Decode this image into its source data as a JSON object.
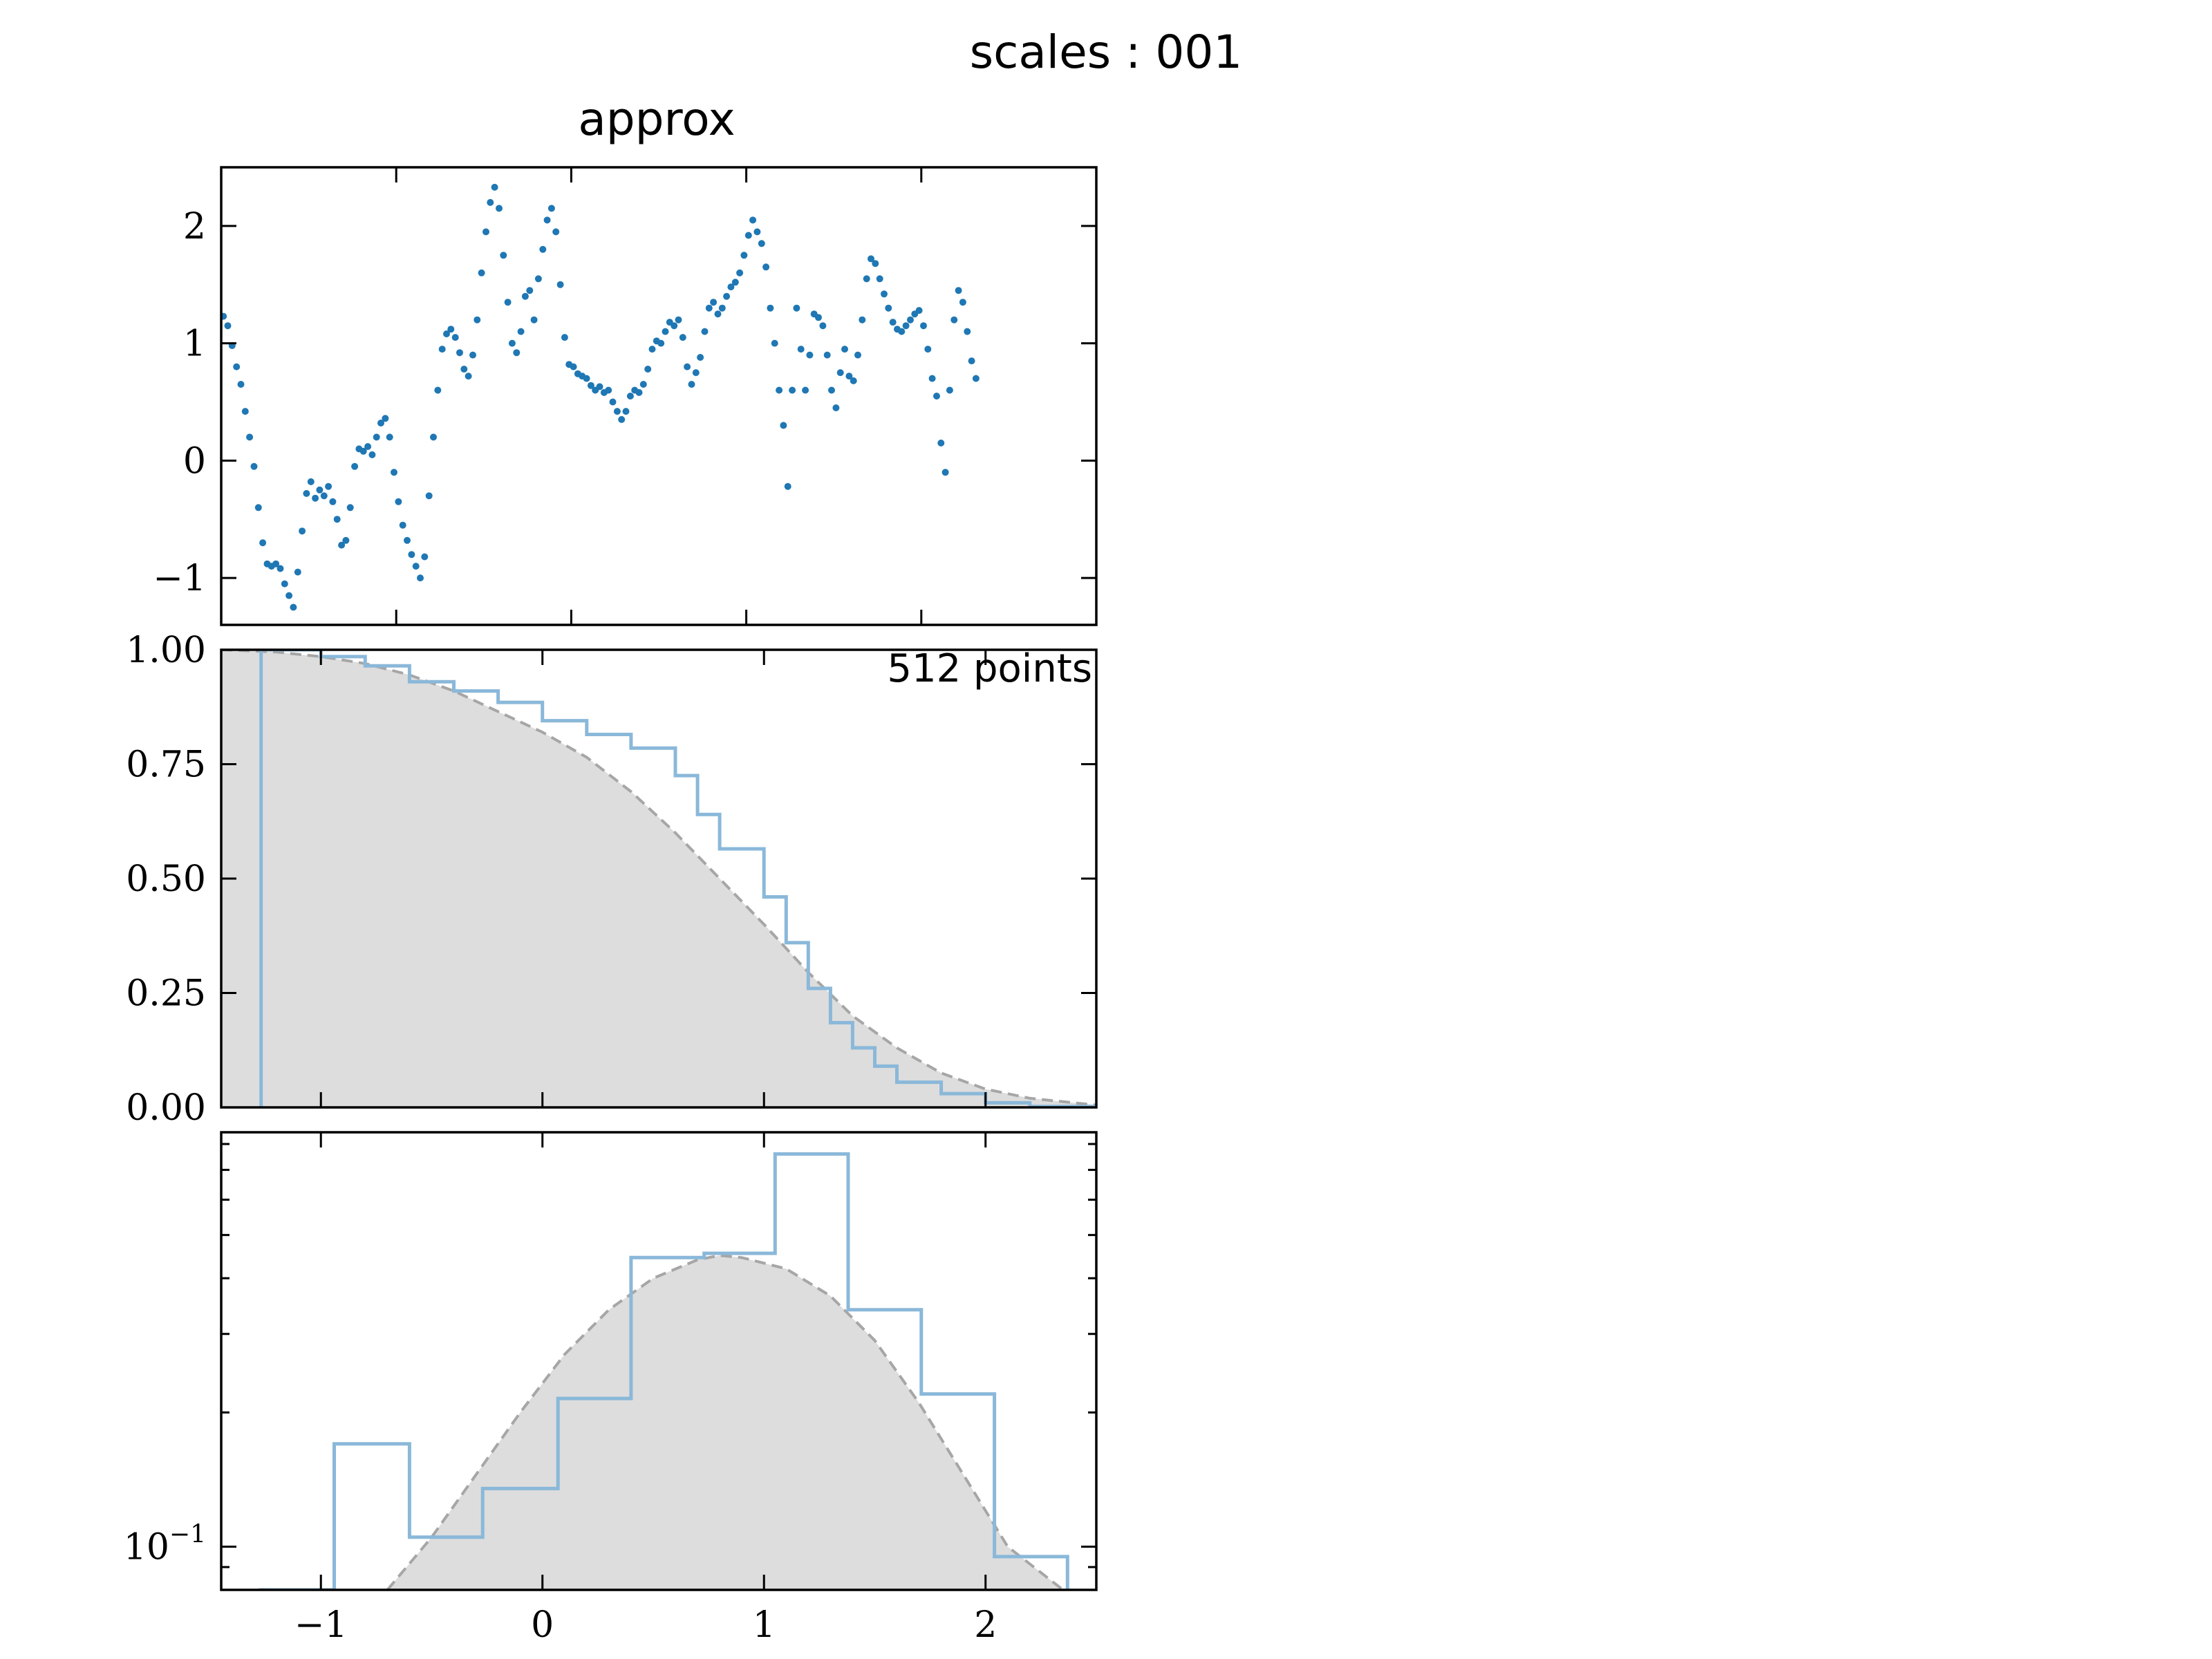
{
  "figure": {
    "suptitle": "scales : 001",
    "colors": {
      "series": "#1f77b4",
      "series_light": "#8ab8d9",
      "reference_fill": "#dddddd",
      "reference_line": "#a6a6a6"
    }
  },
  "chart_data": [
    {
      "type": "scatter",
      "title": "approx",
      "xlim": [
        -1.45,
        2.55
      ],
      "ylim": [
        -1.4,
        2.5
      ],
      "yticks": [
        {
          "value": -1,
          "label": "−1"
        },
        {
          "value": 0,
          "label": "0"
        },
        {
          "value": 1,
          "label": "1"
        },
        {
          "value": 2,
          "label": "2"
        }
      ],
      "xticks_unlabeled": [
        -0.65,
        0.15,
        0.95,
        1.75
      ],
      "series": [
        {
          "points": [
            [
              -1.44,
              1.23
            ],
            [
              -1.42,
              1.15
            ],
            [
              -1.4,
              0.98
            ],
            [
              -1.38,
              0.8
            ],
            [
              -1.36,
              0.65
            ],
            [
              -1.34,
              0.42
            ],
            [
              -1.32,
              0.2
            ],
            [
              -1.3,
              -0.05
            ],
            [
              -1.28,
              -0.4
            ],
            [
              -1.26,
              -0.7
            ],
            [
              -1.24,
              -0.88
            ],
            [
              -1.22,
              -0.9
            ],
            [
              -1.2,
              -0.88
            ],
            [
              -1.18,
              -0.92
            ],
            [
              -1.16,
              -1.05
            ],
            [
              -1.14,
              -1.15
            ],
            [
              -1.12,
              -1.25
            ],
            [
              -1.1,
              -0.95
            ],
            [
              -1.08,
              -0.6
            ],
            [
              -1.06,
              -0.28
            ],
            [
              -1.04,
              -0.18
            ],
            [
              -1.02,
              -0.32
            ],
            [
              -1.0,
              -0.25
            ],
            [
              -0.98,
              -0.3
            ],
            [
              -0.96,
              -0.22
            ],
            [
              -0.94,
              -0.35
            ],
            [
              -0.92,
              -0.5
            ],
            [
              -0.9,
              -0.72
            ],
            [
              -0.88,
              -0.68
            ],
            [
              -0.86,
              -0.4
            ],
            [
              -0.84,
              -0.05
            ],
            [
              -0.82,
              0.1
            ],
            [
              -0.8,
              0.08
            ],
            [
              -0.78,
              0.12
            ],
            [
              -0.76,
              0.05
            ],
            [
              -0.74,
              0.2
            ],
            [
              -0.72,
              0.32
            ],
            [
              -0.7,
              0.36
            ],
            [
              -0.68,
              0.2
            ],
            [
              -0.66,
              -0.1
            ],
            [
              -0.64,
              -0.35
            ],
            [
              -0.62,
              -0.55
            ],
            [
              -0.6,
              -0.68
            ],
            [
              -0.58,
              -0.8
            ],
            [
              -0.56,
              -0.9
            ],
            [
              -0.54,
              -1.0
            ],
            [
              -0.52,
              -0.82
            ],
            [
              -0.5,
              -0.3
            ],
            [
              -0.48,
              0.2
            ],
            [
              -0.46,
              0.6
            ],
            [
              -0.44,
              0.95
            ],
            [
              -0.42,
              1.08
            ],
            [
              -0.4,
              1.12
            ],
            [
              -0.38,
              1.05
            ],
            [
              -0.36,
              0.92
            ],
            [
              -0.34,
              0.78
            ],
            [
              -0.32,
              0.72
            ],
            [
              -0.3,
              0.9
            ],
            [
              -0.28,
              1.2
            ],
            [
              -0.26,
              1.6
            ],
            [
              -0.24,
              1.95
            ],
            [
              -0.22,
              2.2
            ],
            [
              -0.2,
              2.33
            ],
            [
              -0.18,
              2.15
            ],
            [
              -0.16,
              1.75
            ],
            [
              -0.14,
              1.35
            ],
            [
              -0.12,
              1.0
            ],
            [
              -0.1,
              0.92
            ],
            [
              -0.08,
              1.1
            ],
            [
              -0.06,
              1.4
            ],
            [
              -0.04,
              1.45
            ],
            [
              -0.02,
              1.2
            ],
            [
              0.0,
              1.55
            ],
            [
              0.02,
              1.8
            ],
            [
              0.04,
              2.05
            ],
            [
              0.06,
              2.15
            ],
            [
              0.08,
              1.95
            ],
            [
              0.1,
              1.5
            ],
            [
              0.12,
              1.05
            ],
            [
              0.14,
              0.82
            ],
            [
              0.16,
              0.8
            ],
            [
              0.18,
              0.74
            ],
            [
              0.2,
              0.72
            ],
            [
              0.22,
              0.7
            ],
            [
              0.24,
              0.64
            ],
            [
              0.26,
              0.6
            ],
            [
              0.28,
              0.63
            ],
            [
              0.3,
              0.58
            ],
            [
              0.32,
              0.6
            ],
            [
              0.34,
              0.5
            ],
            [
              0.36,
              0.42
            ],
            [
              0.38,
              0.35
            ],
            [
              0.4,
              0.42
            ],
            [
              0.42,
              0.55
            ],
            [
              0.44,
              0.6
            ],
            [
              0.46,
              0.58
            ],
            [
              0.48,
              0.65
            ],
            [
              0.5,
              0.78
            ],
            [
              0.52,
              0.95
            ],
            [
              0.54,
              1.02
            ],
            [
              0.56,
              1.0
            ],
            [
              0.58,
              1.1
            ],
            [
              0.6,
              1.18
            ],
            [
              0.62,
              1.15
            ],
            [
              0.64,
              1.2
            ],
            [
              0.66,
              1.05
            ],
            [
              0.68,
              0.8
            ],
            [
              0.7,
              0.65
            ],
            [
              0.72,
              0.75
            ],
            [
              0.74,
              0.88
            ],
            [
              0.76,
              1.1
            ],
            [
              0.78,
              1.3
            ],
            [
              0.8,
              1.35
            ],
            [
              0.82,
              1.25
            ],
            [
              0.84,
              1.3
            ],
            [
              0.86,
              1.4
            ],
            [
              0.88,
              1.48
            ],
            [
              0.9,
              1.52
            ],
            [
              0.92,
              1.6
            ],
            [
              0.94,
              1.75
            ],
            [
              0.96,
              1.92
            ],
            [
              0.98,
              2.05
            ],
            [
              1.0,
              1.95
            ],
            [
              1.02,
              1.85
            ],
            [
              1.04,
              1.65
            ],
            [
              1.06,
              1.3
            ],
            [
              1.08,
              1.0
            ],
            [
              1.1,
              0.6
            ],
            [
              1.12,
              0.3
            ],
            [
              1.14,
              -0.22
            ],
            [
              1.16,
              0.6
            ],
            [
              1.18,
              1.3
            ],
            [
              1.2,
              0.95
            ],
            [
              1.22,
              0.6
            ],
            [
              1.24,
              0.9
            ],
            [
              1.26,
              1.25
            ],
            [
              1.28,
              1.22
            ],
            [
              1.3,
              1.15
            ],
            [
              1.32,
              0.9
            ],
            [
              1.34,
              0.6
            ],
            [
              1.36,
              0.45
            ],
            [
              1.38,
              0.75
            ],
            [
              1.4,
              0.95
            ],
            [
              1.42,
              0.72
            ],
            [
              1.44,
              0.68
            ],
            [
              1.46,
              0.9
            ],
            [
              1.48,
              1.2
            ],
            [
              1.5,
              1.55
            ],
            [
              1.52,
              1.72
            ],
            [
              1.54,
              1.68
            ],
            [
              1.56,
              1.55
            ],
            [
              1.58,
              1.42
            ],
            [
              1.6,
              1.3
            ],
            [
              1.62,
              1.18
            ],
            [
              1.64,
              1.12
            ],
            [
              1.66,
              1.1
            ],
            [
              1.68,
              1.15
            ],
            [
              1.7,
              1.2
            ],
            [
              1.72,
              1.25
            ],
            [
              1.74,
              1.28
            ],
            [
              1.76,
              1.15
            ],
            [
              1.78,
              0.95
            ],
            [
              1.8,
              0.7
            ],
            [
              1.82,
              0.55
            ],
            [
              1.84,
              0.15
            ],
            [
              1.86,
              -0.1
            ],
            [
              1.88,
              0.6
            ],
            [
              1.9,
              1.2
            ],
            [
              1.92,
              1.45
            ],
            [
              1.94,
              1.35
            ],
            [
              1.96,
              1.1
            ],
            [
              1.98,
              0.85
            ],
            [
              2.0,
              0.7
            ]
          ]
        }
      ]
    },
    {
      "type": "line",
      "annotation": "512 points",
      "xlim": [
        -1.45,
        2.5
      ],
      "ylim": [
        0,
        1
      ],
      "yticks": [
        {
          "value": 0,
          "label": "0.00"
        },
        {
          "value": 0.25,
          "label": "0.25"
        },
        {
          "value": 0.5,
          "label": "0.50"
        },
        {
          "value": 0.75,
          "label": "0.75"
        },
        {
          "value": 1,
          "label": "1.00"
        }
      ],
      "xticks_unlabeled": [
        -1,
        0,
        1,
        2
      ],
      "series": [
        {
          "kind": "step",
          "points": [
            [
              -1.27,
              0
            ],
            [
              -1.27,
              1.0
            ],
            [
              -1.0,
              0.985
            ],
            [
              -0.8,
              0.965
            ],
            [
              -0.6,
              0.93
            ],
            [
              -0.4,
              0.91
            ],
            [
              -0.2,
              0.885
            ],
            [
              0.0,
              0.845
            ],
            [
              0.2,
              0.815
            ],
            [
              0.4,
              0.785
            ],
            [
              0.6,
              0.725
            ],
            [
              0.7,
              0.64
            ],
            [
              0.8,
              0.565
            ],
            [
              1.0,
              0.46
            ],
            [
              1.1,
              0.36
            ],
            [
              1.2,
              0.26
            ],
            [
              1.3,
              0.185
            ],
            [
              1.4,
              0.13
            ],
            [
              1.5,
              0.09
            ],
            [
              1.6,
              0.055
            ],
            [
              1.8,
              0.03
            ],
            [
              2.0,
              0.01
            ],
            [
              2.2,
              0.002
            ],
            [
              2.5,
              0.0
            ]
          ]
        }
      ],
      "reference": {
        "kind": "survival",
        "points": [
          [
            -1.45,
            1.0
          ],
          [
            -1.2,
            0.995
          ],
          [
            -1.0,
            0.985
          ],
          [
            -0.8,
            0.97
          ],
          [
            -0.6,
            0.945
          ],
          [
            -0.4,
            0.91
          ],
          [
            -0.2,
            0.865
          ],
          [
            0.0,
            0.82
          ],
          [
            0.2,
            0.765
          ],
          [
            0.4,
            0.69
          ],
          [
            0.6,
            0.6
          ],
          [
            0.8,
            0.5
          ],
          [
            1.0,
            0.4
          ],
          [
            1.2,
            0.295
          ],
          [
            1.4,
            0.2
          ],
          [
            1.6,
            0.13
          ],
          [
            1.8,
            0.075
          ],
          [
            2.0,
            0.04
          ],
          [
            2.2,
            0.02
          ],
          [
            2.5,
            0.005
          ]
        ]
      }
    },
    {
      "type": "area",
      "yscale": "log",
      "xlim": [
        -1.45,
        2.5
      ],
      "ylim": [
        0.08,
        0.85
      ],
      "yticks": [
        {
          "value": 0.1,
          "label": "10",
          "exponent": "−1"
        }
      ],
      "yminorticks": [
        0.09,
        0.2,
        0.3,
        0.4,
        0.5,
        0.6,
        0.7,
        0.8
      ],
      "xticks": [
        {
          "value": -1,
          "label": "−1"
        },
        {
          "value": 0,
          "label": "0"
        },
        {
          "value": 1,
          "label": "1"
        },
        {
          "value": 2,
          "label": "2"
        }
      ],
      "series": [
        {
          "kind": "step",
          "edges": [
            -1.28,
            -0.94,
            -0.6,
            -0.27,
            0.07,
            0.4,
            0.73,
            1.05,
            1.38,
            1.71,
            2.04,
            2.37
          ],
          "values": [
            0.08,
            0.17,
            0.105,
            0.135,
            0.215,
            0.445,
            0.455,
            0.76,
            0.34,
            0.22,
            0.095
          ]
        }
      ],
      "reference": {
        "kind": "density",
        "points": [
          [
            -0.7,
            0.08
          ],
          [
            -0.5,
            0.105
          ],
          [
            -0.3,
            0.145
          ],
          [
            -0.1,
            0.2
          ],
          [
            0.1,
            0.27
          ],
          [
            0.3,
            0.34
          ],
          [
            0.5,
            0.4
          ],
          [
            0.7,
            0.44
          ],
          [
            0.8,
            0.45
          ],
          [
            0.9,
            0.445
          ],
          [
            1.1,
            0.42
          ],
          [
            1.3,
            0.365
          ],
          [
            1.5,
            0.29
          ],
          [
            1.7,
            0.21
          ],
          [
            1.9,
            0.145
          ],
          [
            2.1,
            0.1
          ],
          [
            2.35,
            0.08
          ]
        ]
      }
    }
  ]
}
